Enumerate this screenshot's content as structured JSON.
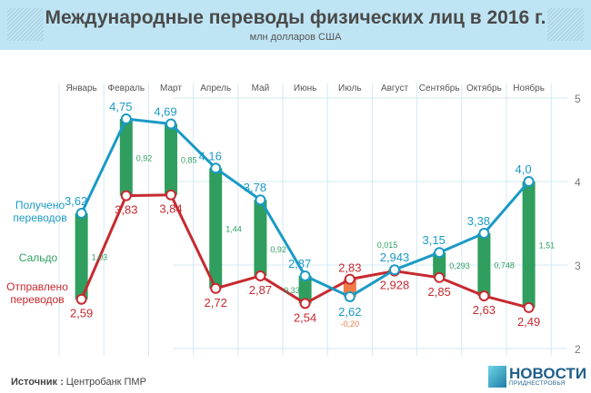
{
  "header": {
    "title": "Международные переводы физических лиц в 2016 г.",
    "subtitle": "млн долларов США"
  },
  "chart_data": {
    "type": "line",
    "title": "Международные переводы физических лиц в 2016 г.",
    "subtitle": "млн долларов США",
    "categories": [
      "Январь",
      "Февраль",
      "Март",
      "Апрель",
      "Май",
      "Июнь",
      "Июль",
      "Август",
      "Сентябрь",
      "Октябрь",
      "Ноябрь"
    ],
    "ylim": [
      2,
      5
    ],
    "yticks": [
      2,
      3,
      4,
      5
    ],
    "grid": true,
    "series": [
      {
        "name": "Получено переводов",
        "color": "#1a9ac6",
        "values": [
          3.62,
          4.75,
          4.69,
          4.16,
          3.78,
          2.87,
          2.62,
          2.943,
          3.15,
          3.38,
          4.0
        ],
        "labels": [
          "3,62",
          "4,75",
          "4,69",
          "4,16",
          "3,78",
          "2,87",
          "2,62",
          "2,943",
          "3,15",
          "3,38",
          "4,0"
        ]
      },
      {
        "name": "Отправлено переводов",
        "color": "#c62a30",
        "values": [
          2.59,
          3.83,
          3.84,
          2.72,
          2.87,
          2.54,
          2.83,
          2.928,
          2.85,
          2.63,
          2.49
        ],
        "labels": [
          "2,59",
          "3,83",
          "3,84",
          "2,72",
          "2,87",
          "2,54",
          "2,83",
          "2,928",
          "2,85",
          "2,63",
          "2,49"
        ]
      },
      {
        "name": "Сальдо",
        "color": "#2f9e5e",
        "negative_color": "#f07a45",
        "type": "bar",
        "values": [
          1.03,
          0.92,
          0.85,
          1.44,
          0.92,
          0.33,
          -0.2,
          0.015,
          0.293,
          0.748,
          1.51
        ],
        "labels": [
          "1,03",
          "0,92",
          "0,85",
          "1,44",
          "0,92",
          "0,33",
          "-0,20",
          "0,015",
          "0,293",
          "0,748",
          "1,51"
        ]
      }
    ]
  },
  "footer": {
    "source_label": "Источник :",
    "source_value": "Центробанк ПМР",
    "logo_line1": "НОВОСТИ",
    "logo_line2": "ПРИДНЕСТРОВЬЯ"
  }
}
